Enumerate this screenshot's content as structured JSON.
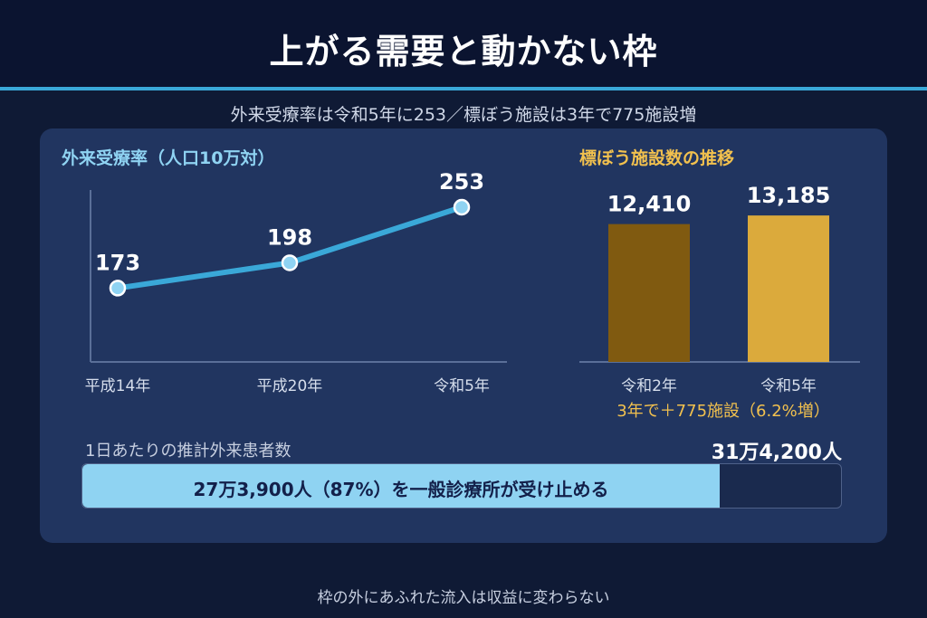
{
  "header": {
    "title": "上がる需要と動かない枠",
    "subtitle": "外来受療率は令和5年に253／標ぼう施設は3年で775施設増"
  },
  "chart_data": [
    {
      "type": "line",
      "title": "外来受療率（人口10万対）",
      "categories": [
        "平成14年",
        "平成20年",
        "令和5年"
      ],
      "values": [
        173,
        198,
        253
      ],
      "color": "#3aa8d8",
      "ylim": [
        100,
        270
      ]
    },
    {
      "type": "bar",
      "title": "標ぼう施設数の推移",
      "categories": [
        "令和2年",
        "令和5年"
      ],
      "values": [
        12410,
        13185
      ],
      "value_labels": [
        "12,410",
        "13,185"
      ],
      "colors": [
        "#805a10",
        "#dbaa3c"
      ],
      "ylim": [
        0,
        14500
      ],
      "note": "3年で＋775施設（6.2%増）"
    }
  ],
  "patients": {
    "label": "1日あたりの推計外来患者数",
    "total_label": "31万4,200人",
    "share_text": "27万3,900人（87%）を一般診療所が受け止める",
    "share_fraction": 0.87
  },
  "footer": {
    "text": "枠の外にあふれた流入は収益に変わらない"
  }
}
